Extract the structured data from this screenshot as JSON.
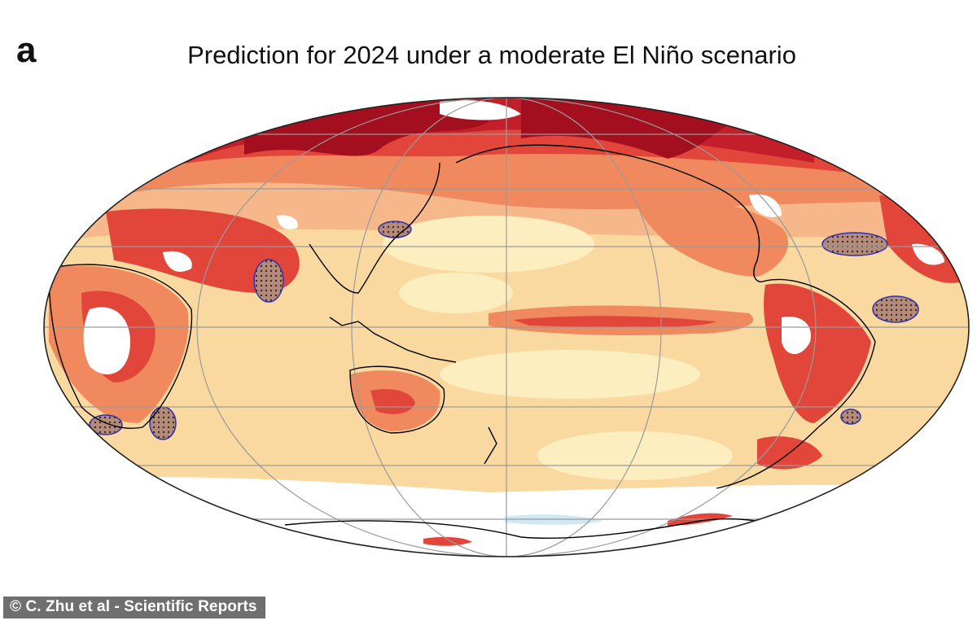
{
  "figure": {
    "panel_label": "a",
    "title": "Prediction for 2024 under a moderate El Niño scenario",
    "credit": "© C. Zhu et al - Scientific Reports"
  },
  "map": {
    "projection": "Mollweide (Pacific-centred)",
    "colors": {
      "ocean_base": "#f9d9a0",
      "light_yellow": "#fdeec0",
      "light_orange": "#f6b88a",
      "orange": "#f08a5e",
      "red": "#e2463a",
      "dark_red": "#c21f2a",
      "deep_red": "#a30f1e",
      "white_gap": "#ffffff",
      "cool_blue": "#cfe8f3",
      "coastline": "#000000",
      "gridline": "#9a9a9a",
      "stipple_outline": "#3030b0"
    },
    "icons": [
      "stippled-hotspot-region",
      "coastline-outline",
      "graticule-lines"
    ]
  }
}
